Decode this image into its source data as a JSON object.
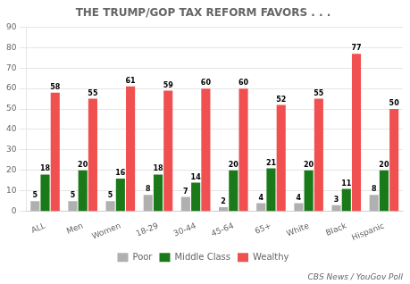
{
  "chart_data": {
    "type": "bar",
    "title": "THE TRUMP/GOP TAX REFORM FAVORS . . .",
    "categories": [
      "ALL",
      "Men",
      "Women",
      "18-29",
      "30-44",
      "45-64",
      "65+",
      "White",
      "Black",
      "Hispanic"
    ],
    "series": [
      {
        "name": "Poor",
        "color": "#b0b0b0",
        "values": [
          5,
          5,
          5,
          8,
          7,
          2,
          4,
          4,
          3,
          8
        ]
      },
      {
        "name": "Middle Class",
        "color": "#1a7a1a",
        "values": [
          18,
          20,
          16,
          18,
          14,
          20,
          21,
          20,
          11,
          20
        ]
      },
      {
        "name": "Wealthy",
        "color": "#f05050",
        "values": [
          58,
          55,
          61,
          59,
          60,
          60,
          52,
          55,
          77,
          50
        ]
      }
    ],
    "ylim": [
      0,
      90
    ],
    "yticks": [
      0,
      10,
      20,
      30,
      40,
      50,
      60,
      70,
      80,
      90
    ],
    "grid": true,
    "legend": "bottom",
    "data_labels": true,
    "annotations": [
      "CBS News / YouGov Poll"
    ]
  }
}
